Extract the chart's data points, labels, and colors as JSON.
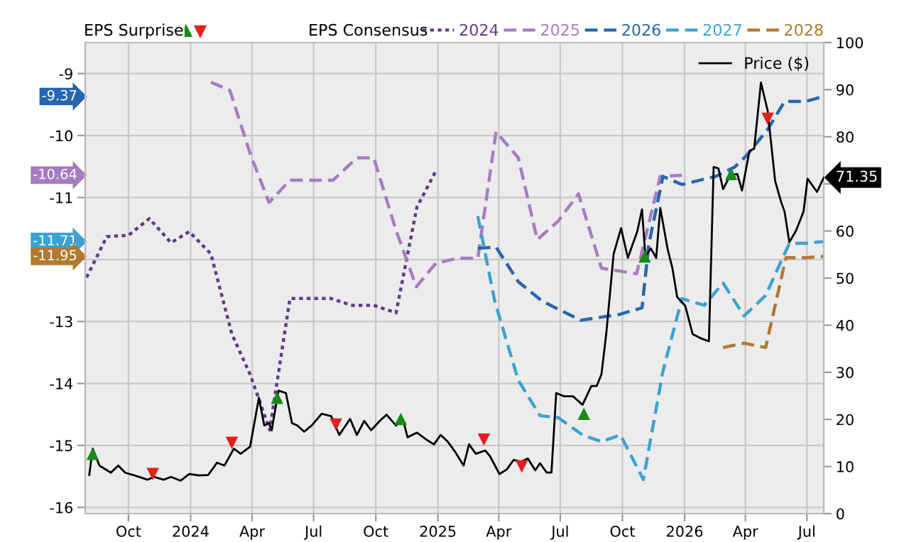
{
  "chart_data": {
    "type": "line",
    "xlim": [
      "2023-07-29",
      "2026-07-26"
    ],
    "xticks": [
      {
        "value": "2023-10-01",
        "label": "Oct"
      },
      {
        "value": "2024-01-01",
        "label": "2024"
      },
      {
        "value": "2024-04-01",
        "label": "Apr"
      },
      {
        "value": "2024-07-01",
        "label": "Jul"
      },
      {
        "value": "2024-10-01",
        "label": "Oct"
      },
      {
        "value": "2025-01-01",
        "label": "2025"
      },
      {
        "value": "2025-04-01",
        "label": "Apr"
      },
      {
        "value": "2025-07-01",
        "label": "Jul"
      },
      {
        "value": "2025-10-01",
        "label": "Oct"
      },
      {
        "value": "2026-01-01",
        "label": "2026"
      },
      {
        "value": "2026-04-01",
        "label": "Apr"
      },
      {
        "value": "2026-07-01",
        "label": "Jul"
      }
    ],
    "ylim": [
      -16.1,
      -8.5
    ],
    "yticks": [
      -16,
      -15,
      -14,
      -13,
      {
        "value": -12,
        "label": null
      },
      -11,
      -10,
      -9
    ],
    "y2lim": [
      0,
      100
    ],
    "y2ticks": [
      0,
      10,
      20,
      30,
      40,
      50,
      60,
      {
        "value": 70,
        "label": null
      },
      80,
      90,
      100
    ],
    "grid": true,
    "legend": "top",
    "annotations": [
      "EPS Surprise",
      "EPS Consensus",
      "-9.37",
      "-10.64",
      "-11.71",
      "-11.95"
    ],
    "series": [
      {
        "name": "2024",
        "color": "#5e3a8c",
        "line_style": "dotted",
        "x": [
          "2023-07-31",
          "2023-08-30",
          "2023-10-01",
          "2023-11-01",
          "2023-12-03",
          "2023-12-30",
          "2024-01-31",
          "2024-03-02",
          "2024-03-30",
          "2024-04-27",
          "2024-05-27",
          "2024-07-27",
          "2024-08-27",
          "2024-09-28",
          "2024-10-31",
          "2024-12-01",
          "2024-12-29"
        ],
        "values": [
          -12.29,
          -11.63,
          -11.61,
          -11.34,
          -11.73,
          -11.55,
          -11.91,
          -13.2,
          -13.88,
          -14.75,
          -12.63,
          -12.63,
          -12.74,
          -12.74,
          -12.86,
          -11.15,
          -10.57
        ]
      },
      {
        "name": "2025",
        "color": "#a77bc2",
        "line_style": "dashed",
        "x": [
          "2024-01-31",
          "2024-02-28",
          "2024-03-30",
          "2024-04-26",
          "2024-05-27",
          "2024-07-30",
          "2024-09-03",
          "2024-09-28",
          "2024-10-31",
          "2024-11-30",
          "2024-12-29",
          "2025-01-30",
          "2025-03-01",
          "2025-03-28",
          "2025-04-30",
          "2025-05-28",
          "2025-06-28",
          "2025-07-28",
          "2025-08-31",
          "2025-10-22",
          "2025-11-26",
          "2025-12-28"
        ],
        "values": [
          -9.14,
          -9.27,
          -10.32,
          -11.08,
          -10.72,
          -10.72,
          -10.36,
          -10.36,
          -11.53,
          -12.44,
          -12.06,
          -11.98,
          -11.98,
          -9.94,
          -10.36,
          -11.68,
          -11.38,
          -10.94,
          -12.14,
          -12.23,
          -10.66,
          -10.64
        ]
      },
      {
        "name": "2026",
        "color": "#2566b0",
        "line_style": "dashed",
        "x": [
          "2025-03-01",
          "2025-03-28",
          "2025-04-30",
          "2025-06-04",
          "2025-07-31",
          "2025-09-25",
          "2025-10-30",
          "2025-11-09",
          "2025-11-30",
          "2025-12-28",
          "2026-02-16",
          "2026-03-16",
          "2026-04-03",
          "2026-05-04",
          "2026-05-29",
          "2026-06-29",
          "2026-07-26"
        ],
        "values": [
          -11.82,
          -11.8,
          -12.36,
          -12.67,
          -12.98,
          -12.89,
          -12.78,
          -11.76,
          -10.66,
          -10.79,
          -10.66,
          -10.51,
          -10.32,
          -9.9,
          -9.45,
          -9.45,
          -9.37
        ]
      },
      {
        "name": "2027",
        "color": "#3ca2d4",
        "line_style": "dashed",
        "x": [
          "2025-03-01",
          "2025-03-26",
          "2025-04-30",
          "2025-06-01",
          "2025-06-28",
          "2025-08-03",
          "2025-08-31",
          "2025-09-28",
          "2025-11-01",
          "2025-11-30",
          "2025-12-28",
          "2026-01-30",
          "2026-02-27",
          "2026-03-30",
          "2026-05-01",
          "2026-06-05",
          "2026-06-29",
          "2026-07-26"
        ],
        "values": [
          -11.3,
          -12.67,
          -13.95,
          -14.52,
          -14.55,
          -14.83,
          -14.94,
          -14.83,
          -15.55,
          -13.8,
          -12.63,
          -12.74,
          -12.38,
          -12.91,
          -12.58,
          -11.74,
          -11.74,
          -11.71
        ]
      },
      {
        "name": "2028",
        "color": "#b07a30",
        "line_style": "dashed",
        "x": [
          "2026-02-27",
          "2026-03-30",
          "2026-05-01",
          "2026-05-31",
          "2026-06-29",
          "2026-07-26"
        ],
        "values": [
          -13.42,
          -13.35,
          -13.42,
          -11.97,
          -11.97,
          -11.95
        ]
      },
      {
        "name": "Price ($)",
        "axis": "y2",
        "color": "#000000",
        "line_style": "solid",
        "x": [
          "2023-08-04",
          "2023-08-09",
          "2023-08-19",
          "2023-09-05",
          "2023-09-16",
          "2023-09-26",
          "2023-10-08",
          "2023-10-29",
          "2023-11-08",
          "2023-11-22",
          "2023-12-03",
          "2023-12-17",
          "2023-12-30",
          "2024-01-13",
          "2024-01-27",
          "2024-02-09",
          "2024-02-20",
          "2024-03-05",
          "2024-03-15",
          "2024-03-29",
          "2024-04-11",
          "2024-04-19",
          "2024-04-26",
          "2024-04-30",
          "2024-05-10",
          "2024-05-21",
          "2024-05-30",
          "2024-06-07",
          "2024-06-17",
          "2024-06-28",
          "2024-07-13",
          "2024-07-27",
          "2024-08-08",
          "2024-08-24",
          "2024-09-03",
          "2024-09-14",
          "2024-09-24",
          "2024-10-07",
          "2024-10-17",
          "2024-10-31",
          "2024-11-10",
          "2024-11-17",
          "2024-12-01",
          "2024-12-15",
          "2024-12-26",
          "2025-01-05",
          "2025-01-16",
          "2025-01-26",
          "2025-02-08",
          "2025-02-16",
          "2025-02-26",
          "2025-03-12",
          "2025-03-19",
          "2025-04-02",
          "2025-04-13",
          "2025-04-23",
          "2025-05-04",
          "2025-05-14",
          "2025-05-25",
          "2025-06-01",
          "2025-06-11",
          "2025-06-18",
          "2025-06-25",
          "2025-07-07",
          "2025-07-20",
          "2025-08-03",
          "2025-08-16",
          "2025-08-24",
          "2025-08-31",
          "2025-09-07",
          "2025-09-18",
          "2025-09-29",
          "2025-10-09",
          "2025-10-23",
          "2025-10-30",
          "2025-11-04",
          "2025-11-12",
          "2025-11-20",
          "2025-11-26",
          "2025-12-07",
          "2025-12-14",
          "2025-12-21",
          "2026-01-02",
          "2026-01-13",
          "2026-01-27",
          "2026-02-06",
          "2026-02-13",
          "2026-02-20",
          "2026-02-27",
          "2026-03-10",
          "2026-03-20",
          "2026-03-27",
          "2026-04-07",
          "2026-04-14",
          "2026-04-24",
          "2026-05-04",
          "2026-05-15",
          "2026-05-24",
          "2026-05-29",
          "2026-06-05",
          "2026-06-15",
          "2026-06-26",
          "2026-07-02",
          "2026-07-16",
          "2026-07-26"
        ],
        "values": [
          8.2,
          13.8,
          10.2,
          8.7,
          10.2,
          8.7,
          8.2,
          7.2,
          7.8,
          7.2,
          7.8,
          7.0,
          8.4,
          8.1,
          8.2,
          10.8,
          10.2,
          13.8,
          12.7,
          14.2,
          24.6,
          18.7,
          19.2,
          17.7,
          26.1,
          25.6,
          19.2,
          18.7,
          17.4,
          18.7,
          21.2,
          20.7,
          16.7,
          20.1,
          16.7,
          19.7,
          17.7,
          19.7,
          21.0,
          18.7,
          20.1,
          16.2,
          17.2,
          15.7,
          14.7,
          16.7,
          15.2,
          13.2,
          10.2,
          14.7,
          12.7,
          13.4,
          12.2,
          8.4,
          9.4,
          11.4,
          11.0,
          11.7,
          9.2,
          10.7,
          8.7,
          8.7,
          25.6,
          24.9,
          24.9,
          23.1,
          27.1,
          27.1,
          29.6,
          38.1,
          55.1,
          60.6,
          54.3,
          59.9,
          64.6,
          54.6,
          56.3,
          54.3,
          64.9,
          56.1,
          52.1,
          46.0,
          44.1,
          38.1,
          37.1,
          36.6,
          73.6,
          73.3,
          68.9,
          71.9,
          72.1,
          68.6,
          77.0,
          77.5,
          91.5,
          85.5,
          70.6,
          66.1,
          64.1,
          57.6,
          60.1,
          64.1,
          71.1,
          68.3,
          71.35
        ],
        "value_labels": [
          null,
          null,
          null,
          null,
          null,
          null,
          null,
          null,
          null,
          null,
          null,
          null,
          null,
          null,
          null,
          null,
          null,
          null,
          null,
          null,
          null,
          null,
          null,
          null,
          null,
          null,
          null,
          null,
          null,
          null,
          null,
          null,
          null,
          null,
          null,
          null,
          null,
          null,
          null,
          null,
          null,
          null,
          null,
          null,
          null,
          null,
          null,
          null,
          null,
          null,
          null,
          null,
          null,
          null,
          null,
          null,
          null,
          null,
          null,
          null,
          null,
          null,
          null,
          null,
          null,
          null,
          null,
          null,
          null,
          null,
          null,
          null,
          null,
          null,
          null,
          null,
          null,
          null,
          null,
          null,
          null,
          null,
          null,
          null,
          null,
          null,
          null,
          null,
          null,
          null,
          null,
          null,
          null,
          null,
          null,
          null,
          null,
          null,
          null,
          null,
          null,
          null,
          null,
          null,
          "71.35"
        ]
      },
      {
        "type": "scatter",
        "axis": "y2",
        "color": "#1a8a1a",
        "marker": "triangle",
        "x": [
          "2023-08-09",
          "2024-05-08",
          "2024-11-07",
          "2025-08-05",
          "2025-11-03",
          "2026-03-11"
        ],
        "values": [
          12.7,
          24.6,
          20.1,
          21.2,
          54.6,
          72.1
        ]
      },
      {
        "type": "scatter",
        "axis": "y2",
        "color": "#e02020",
        "marker": "triangle_down",
        "x": [
          "2023-11-06",
          "2024-03-02",
          "2024-08-03",
          "2025-03-10",
          "2025-05-05",
          "2026-05-04"
        ],
        "values": [
          8.4,
          15.0,
          18.9,
          15.7,
          10.0,
          83.8
        ]
      }
    ]
  }
}
